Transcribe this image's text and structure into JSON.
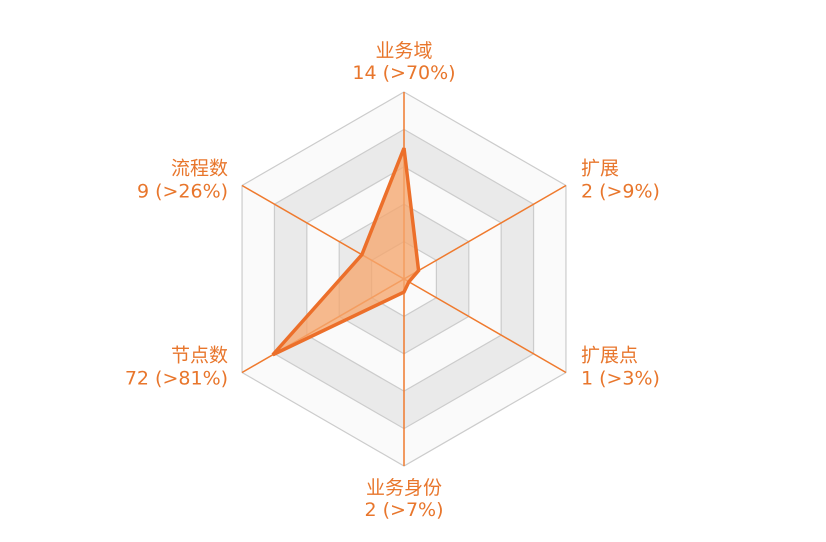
{
  "chart_data": {
    "type": "radar",
    "title": "",
    "axes": [
      {
        "name": "业务域",
        "value_label": "14 (>70%)",
        "value": 0.7
      },
      {
        "name": "扩展",
        "value_label": "2 (>9%)",
        "value": 0.09
      },
      {
        "name": "扩展点",
        "value_label": "1 (>3%)",
        "value": 0.03
      },
      {
        "name": "业务身份",
        "value_label": "2 (>7%)",
        "value": 0.07
      },
      {
        "name": "节点数",
        "value_label": "72 (>81%)",
        "value": 0.81
      },
      {
        "name": "流程数",
        "value_label": "9 (>26%)",
        "value": 0.26
      }
    ],
    "rings": 5,
    "range": [
      0,
      1
    ],
    "legend": "none",
    "colors": {
      "series_line": "#ec6f2a",
      "series_fill": "#f5a66e",
      "axis_line": "#ef7a2e",
      "label_text": "#e8762c",
      "ring_stroke": "#cccccc",
      "ring_fill_dark": "#eaeaea",
      "ring_fill_light": "#fafafa"
    }
  }
}
